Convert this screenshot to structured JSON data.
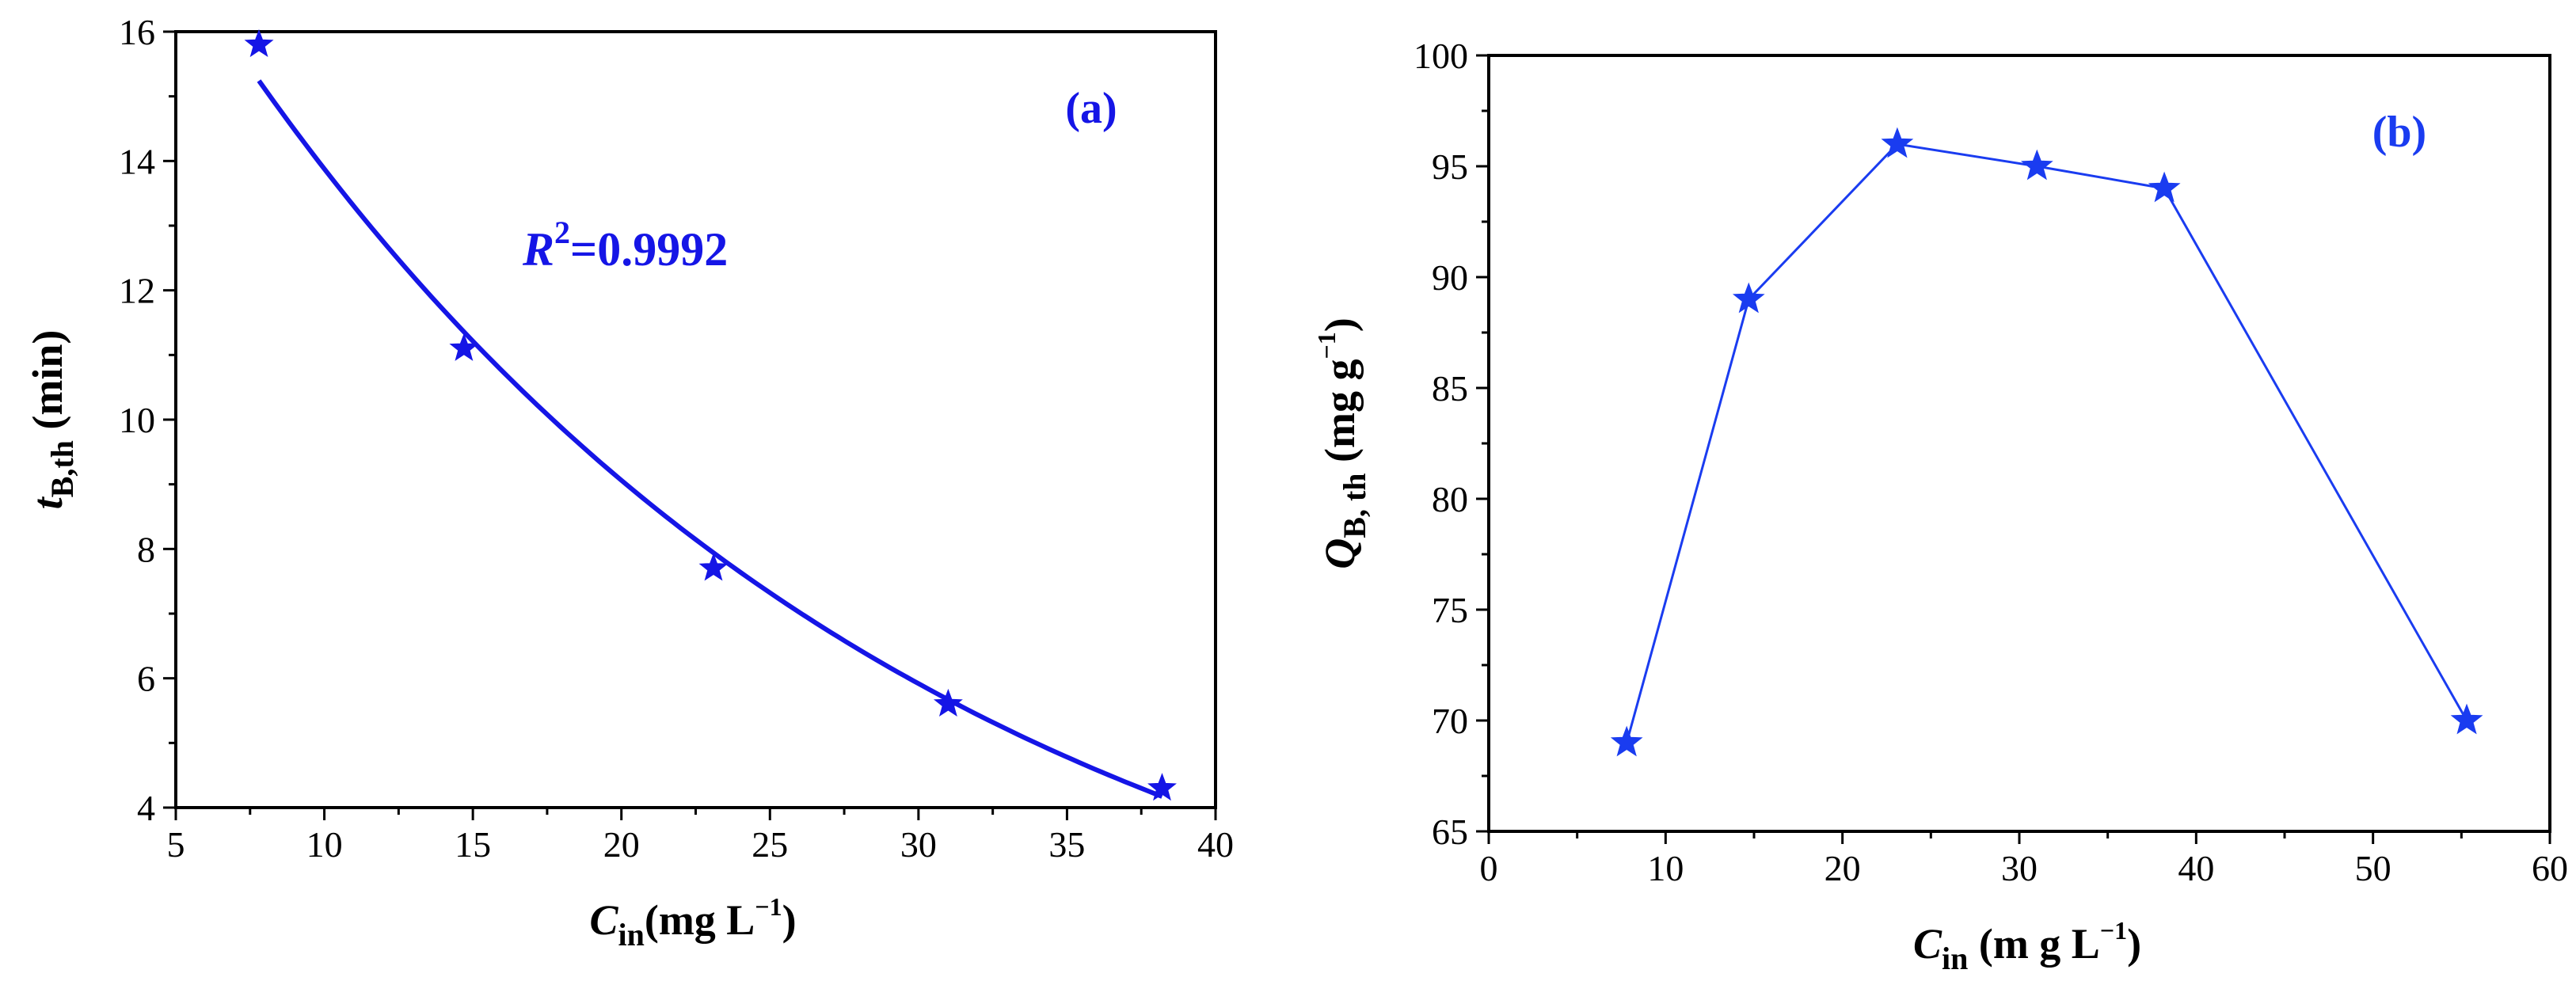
{
  "chart_data": [
    {
      "type": "line",
      "panel": "(a)",
      "title": "",
      "xlabel": {
        "main": "C",
        "sub": "in",
        "units": "(mg L",
        "sup": "−1",
        "close": ")"
      },
      "ylabel": {
        "main": "t",
        "sub": "B,th",
        "units": " (min)"
      },
      "xlim": [
        5,
        40
      ],
      "ylim": [
        4,
        16
      ],
      "xticks": [
        5,
        10,
        15,
        20,
        25,
        30,
        35,
        40
      ],
      "yticks": [
        4,
        6,
        8,
        10,
        12,
        14,
        16
      ],
      "series": [
        {
          "name": "t_B,th",
          "x": [
            7.8,
            14.7,
            23.1,
            31.0,
            38.2
          ],
          "y": [
            15.8,
            11.1,
            7.7,
            5.6,
            4.3
          ],
          "marker": "star",
          "line": "smooth fit"
        }
      ],
      "annotation": {
        "main": "R",
        "sup": "2",
        "rest": "=0.9992"
      },
      "color": "#1515e6",
      "grid": false
    },
    {
      "type": "line",
      "panel": "(b)",
      "title": "",
      "xlabel": {
        "main": "C",
        "sub": "in",
        "units": " (m g L",
        "sup": "−1",
        "close": ")"
      },
      "ylabel": {
        "main": "Q",
        "sub": "B, th",
        "units": " (mg g",
        "sup": "−1",
        "close": ")"
      },
      "xlim": [
        0,
        60
      ],
      "ylim": [
        65,
        100
      ],
      "xticks": [
        0,
        10,
        20,
        30,
        40,
        50,
        60
      ],
      "yticks": [
        65,
        70,
        75,
        80,
        85,
        90,
        95,
        100
      ],
      "series": [
        {
          "name": "Q_B,th",
          "x": [
            7.8,
            14.7,
            23.1,
            31.0,
            38.2,
            55.3
          ],
          "y": [
            69,
            89,
            96,
            95,
            94,
            70
          ],
          "marker": "star",
          "line": "straight"
        }
      ],
      "color": "#1a3cf0",
      "grid": false
    }
  ]
}
